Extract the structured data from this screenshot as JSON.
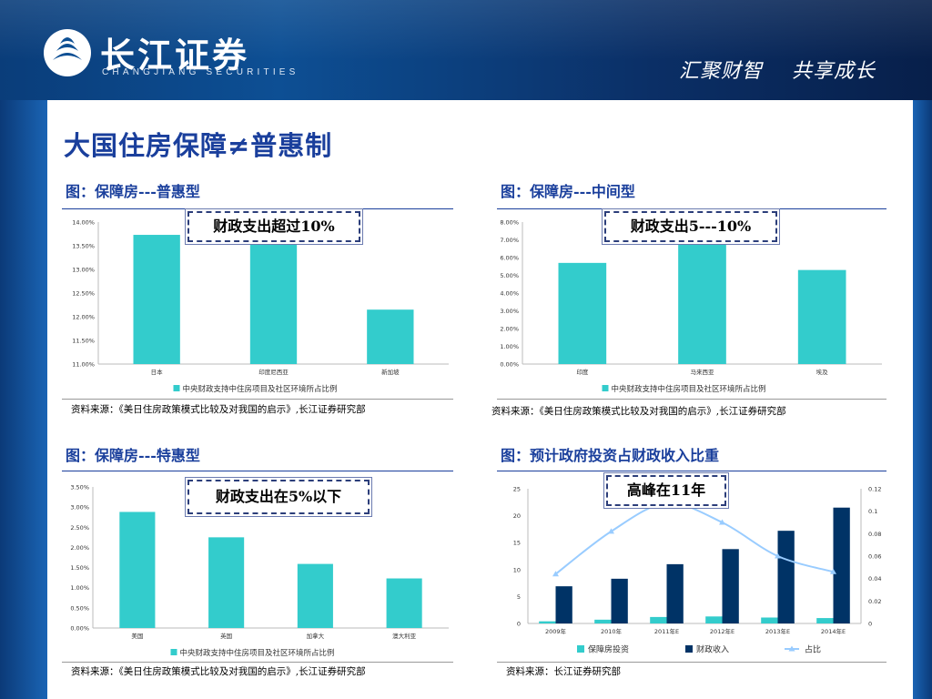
{
  "header": {
    "brand_cn": "长江证券",
    "brand_en": "CHANGJIANG SECURITIES",
    "slogan": "汇聚财智    共享成长"
  },
  "page_title": "大国住房保障≠普惠制",
  "colors": {
    "teal": "#33cccc",
    "navy": "#003366",
    "line": "#99ccff",
    "title": "#1a3f9c"
  },
  "panels": [
    {
      "title": "图：保障房---普惠型",
      "callout": "财政支出超过10%",
      "source": "资料来源：《美日住房政策模式比较及对我国的启示》,长江证券研究部"
    },
    {
      "title": "图：保障房---中间型",
      "callout": "财政支出5---10%",
      "source": "资料来源：《美日住房政策模式比较及对我国的启示》,长江证券研究部"
    },
    {
      "title": "图：保障房---特惠型",
      "callout": "财政支出在5%以下",
      "source": "资料来源：《美日住房政策模式比较及对我国的启示》,长江证券研究部"
    },
    {
      "title": "图：预计政府投资占财政收入比重",
      "callout": "高峰在11年",
      "source": "资料来源：长江证券研究部"
    }
  ],
  "chart_data": [
    {
      "type": "bar",
      "categories": [
        "日本",
        "印度尼西亚",
        "新加坡"
      ],
      "series": [
        {
          "name": "中央财政支持中住房项目及社区环境所占比例",
          "values": [
            13.73,
            13.56,
            12.15
          ]
        }
      ],
      "ylim": [
        11.0,
        14.0
      ],
      "yticks": [
        "14.00%",
        "13.50%",
        "13.00%",
        "12.50%",
        "12.00%",
        "11.50%",
        "11.00%"
      ],
      "legend": "bottom"
    },
    {
      "type": "bar",
      "categories": [
        "印度",
        "马来西亚",
        "埃及"
      ],
      "series": [
        {
          "name": "中央财政支持中住房项目及社区环境所占比例",
          "values": [
            5.7,
            7.3,
            5.3
          ]
        }
      ],
      "ylim": [
        0,
        8
      ],
      "yticks": [
        "8.00%",
        "7.00%",
        "6.00%",
        "5.00%",
        "4.00%",
        "3.00%",
        "2.00%",
        "1.00%",
        "0.00%"
      ],
      "legend": "bottom"
    },
    {
      "type": "bar",
      "categories": [
        "美国",
        "英国",
        "加拿大",
        "澳大利亚"
      ],
      "series": [
        {
          "name": "中央财政支持中住房项目及社区环境所占比例",
          "values": [
            2.88,
            2.25,
            1.59,
            1.23
          ]
        }
      ],
      "ylim": [
        0,
        3.5
      ],
      "yticks": [
        "3.50%",
        "3.00%",
        "2.50%",
        "2.00%",
        "1.50%",
        "1.00%",
        "0.50%",
        "0.00%"
      ],
      "legend": "bottom"
    },
    {
      "type": "bar+line",
      "categories": [
        "2009年",
        "2010年",
        "2011年E",
        "2012年E",
        "2013年E",
        "2014年E"
      ],
      "series": [
        {
          "name": "保障房投资",
          "axis": "left",
          "kind": "bar",
          "values": [
            0.4,
            0.7,
            1.2,
            1.3,
            1.1,
            1.0
          ]
        },
        {
          "name": "财政收入",
          "axis": "left",
          "kind": "bar",
          "values": [
            6.9,
            8.3,
            11.0,
            13.8,
            17.2,
            21.5
          ]
        },
        {
          "name": "占比",
          "axis": "right",
          "kind": "line",
          "values": [
            0.044,
            0.082,
            0.107,
            0.09,
            0.06,
            0.046
          ]
        }
      ],
      "ylim": [
        0,
        25
      ],
      "y2lim": [
        0,
        0.12
      ],
      "yticks": [
        "25",
        "20",
        "15",
        "10",
        "5",
        "0"
      ],
      "y2ticks": [
        "0.12",
        "0.1",
        "0.08",
        "0.06",
        "0.04",
        "0.02",
        "0"
      ],
      "legend": "bottom"
    }
  ]
}
